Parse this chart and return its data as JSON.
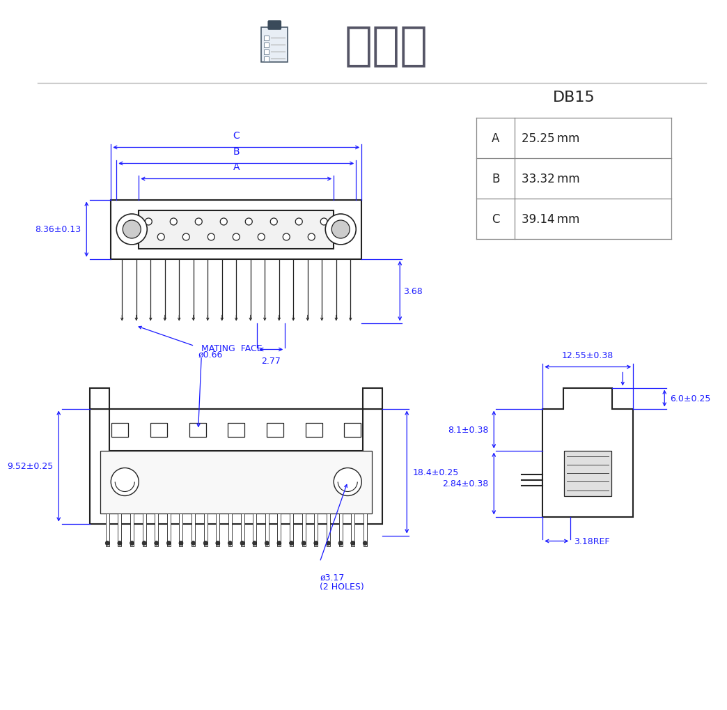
{
  "title": "結構圖",
  "bg_color": "#ffffff",
  "drawing_color": "#1a1aff",
  "line_color": "#222222",
  "table_title": "DB15",
  "table_rows": [
    [
      "A",
      "25.25 mm"
    ],
    [
      "B",
      "33.32 mm"
    ],
    [
      "C",
      "39.14 mm"
    ]
  ],
  "dim_labels": {
    "front_height": "8.36±0.13",
    "pin_dia": "ø0.66",
    "pin_spacing": "2.77",
    "tail_height": "3.68",
    "bottom_height": "9.52±0.25",
    "connector_height": "18.4±0.25",
    "hole_dia": "ø3.17",
    "hole_dia2": "(2 HOLES)",
    "side_top": "12.55±0.38",
    "side_mid": "8.1±0.38",
    "side_bot": "2.84±0.38",
    "side_right": "6.0±0.25",
    "side_ref": "➡ 3.18REF",
    "side_ref2": "3.18REF",
    "mating_face": "MATING  FACE"
  }
}
